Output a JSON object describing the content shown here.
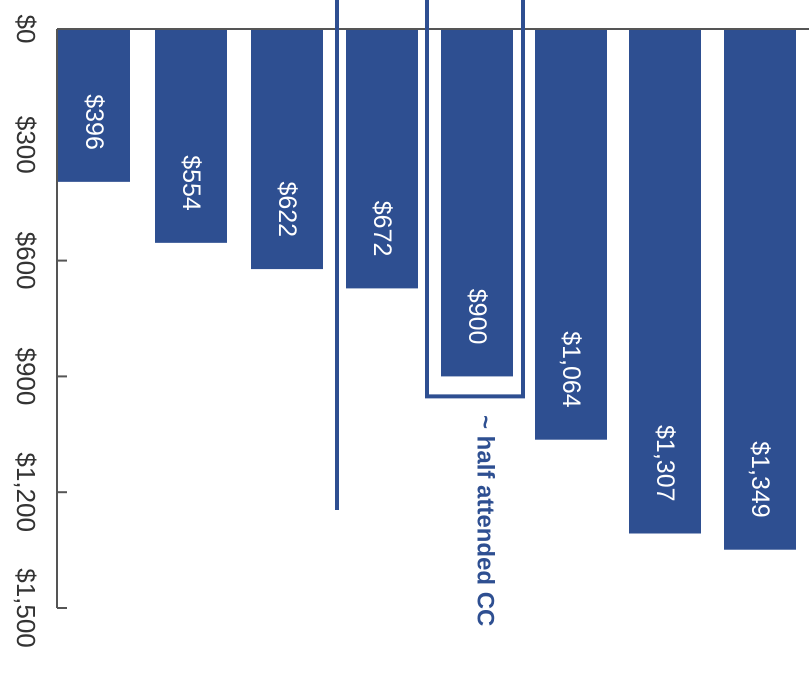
{
  "chart_data": {
    "type": "bar",
    "orientation": "rotated-90-clockwise",
    "values": [
      396,
      554,
      622,
      672,
      900,
      1064,
      1307,
      1349
    ],
    "data_labels": [
      "$396",
      "$554",
      "$622",
      "$672",
      "$900",
      "$1,064",
      "$1,307",
      "$1,349"
    ],
    "ylim": [
      0,
      1500
    ],
    "ticks": [
      0,
      300,
      600,
      900,
      1200,
      1500
    ],
    "tick_labels": [
      "$0",
      "$300",
      "$600",
      "$900",
      "$1,200",
      "$1,500"
    ],
    "highlighted_index": 4,
    "annotation": "~ half attended CC",
    "bar_color": "#2e4f91",
    "accent_color": "#2e4f91",
    "axis_color": "#555555"
  }
}
